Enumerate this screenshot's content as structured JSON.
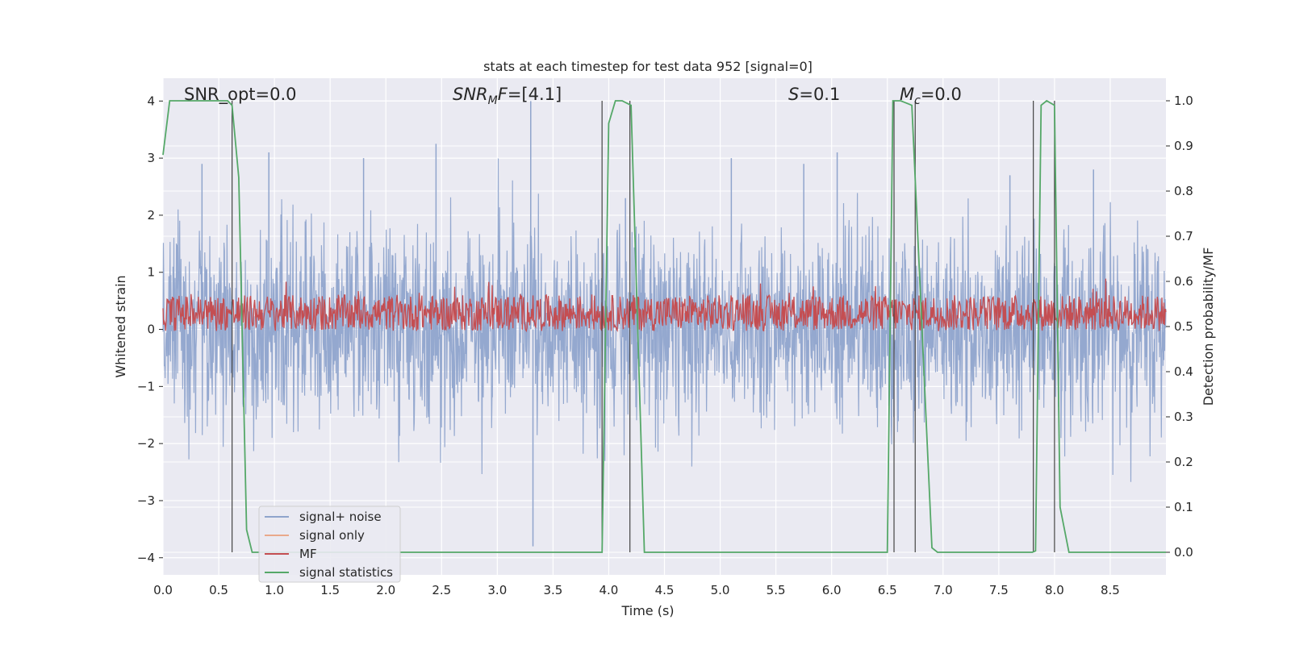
{
  "chart_data": {
    "type": "line",
    "title": "stats at each timestep for test data 952 [signal=0]",
    "xlabel": "Time (s)",
    "ylabel": "Whitened strain",
    "ylabel_right": "Detection probability/MF",
    "xlim": [
      0.0,
      9.0
    ],
    "ylim": [
      -4.3,
      4.4
    ],
    "ylim_right": [
      -0.05,
      1.05
    ],
    "xticks": [
      "0.0",
      "0.5",
      "1.0",
      "1.5",
      "2.0",
      "2.5",
      "3.0",
      "3.5",
      "4.0",
      "4.5",
      "5.0",
      "5.5",
      "6.0",
      "6.5",
      "7.0",
      "7.5",
      "8.0",
      "8.5"
    ],
    "yticks_left": [
      "4",
      "3",
      "2",
      "1",
      "0",
      "−1",
      "−2",
      "−3",
      "−4"
    ],
    "yticks_right": [
      "1.0",
      "0.9",
      "0.8",
      "0.7",
      "0.6",
      "0.5",
      "0.4",
      "0.3",
      "0.2",
      "0.1",
      "0.0"
    ],
    "grid": true,
    "legend": {
      "position": "lower-left",
      "entries": [
        {
          "name": "signal+ noise",
          "color": "#8fa4cc"
        },
        {
          "name": "signal only",
          "color": "#e9a98b"
        },
        {
          "name": "MF",
          "color": "#c44e52"
        },
        {
          "name": "signal statistics",
          "color": "#55a868"
        }
      ]
    },
    "annotations": [
      {
        "text": "SNR_opt=0.0",
        "x": 0.2
      },
      {
        "text": "SNR_MF=[4.1]",
        "x": 2.6
      },
      {
        "text": "S=0.1",
        "x": 5.6
      },
      {
        "text": "M_c=0.0",
        "x": 6.6
      }
    ],
    "series": [
      {
        "name": "signal+ noise",
        "axis": "left",
        "style": "noise band",
        "amplitude_std": 1.0,
        "peaks_x": [
          0.35,
          0.95,
          1.8,
          2.45,
          3.3,
          3.32,
          4.15,
          5.1,
          5.75,
          6.05,
          7.6,
          8.35
        ],
        "peaks_y": [
          2.9,
          3.1,
          3.0,
          3.25,
          4.0,
          -3.8,
          2.3,
          3.0,
          2.9,
          3.1,
          2.7,
          2.8
        ]
      },
      {
        "name": "MF",
        "axis": "right",
        "style": "noise band",
        "center": 0.53,
        "spread": 0.04
      },
      {
        "name": "signal statistics",
        "axis": "right",
        "x": [
          0.0,
          0.06,
          0.58,
          0.62,
          0.68,
          0.75,
          0.8,
          3.94,
          4.0,
          4.06,
          4.12,
          4.2,
          4.32,
          6.5,
          6.55,
          6.62,
          6.72,
          6.9,
          6.95,
          7.8,
          7.83,
          7.88,
          7.93,
          8.0,
          8.05,
          8.13,
          9.0
        ],
        "y": [
          0.88,
          1.0,
          1.0,
          0.99,
          0.83,
          0.05,
          0.0,
          0.0,
          0.95,
          1.0,
          1.0,
          0.99,
          0.0,
          0.0,
          1.0,
          1.0,
          0.99,
          0.01,
          0.0,
          0.0,
          0.003,
          0.99,
          1.0,
          0.99,
          0.1,
          0.0,
          0.0
        ]
      }
    ],
    "vlines_x": [
      0.62,
      3.94,
      4.19,
      6.56,
      6.75,
      7.81,
      8.0
    ]
  }
}
